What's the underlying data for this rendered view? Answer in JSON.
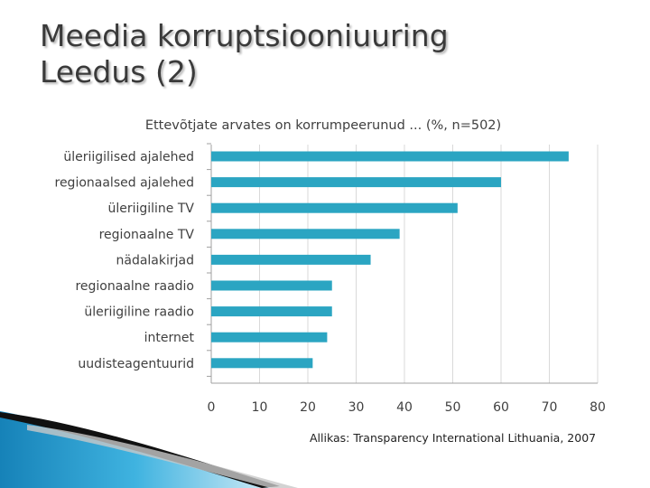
{
  "slide": {
    "title_line1": "Meedia korruptsiooniuuring",
    "title_line2": "Leedus (2)",
    "source": "Allikas: Transparency International Lithuania, 2007"
  },
  "colors": {
    "bar": "#2ba5c2",
    "grid": "#d9d9d9",
    "axis": "#a0a0a0",
    "text": "#404040",
    "deco_blue": "#1e9fd0",
    "deco_dark": "#111111"
  },
  "chart_data": {
    "type": "bar",
    "orientation": "horizontal",
    "title": "Ettevõtjate arvates on korrumpeerunud ... (%, n=502)",
    "categories": [
      "üleriigilised ajalehed",
      "regionaalsed ajalehed",
      "üleriigiline TV",
      "regionaalne TV",
      "nädalakirjad",
      "regionaalne raadio",
      "üleriigiline raadio",
      "internet",
      "uudisteagentuurid"
    ],
    "values": [
      74,
      60,
      51,
      39,
      33,
      25,
      25,
      24,
      21
    ],
    "xlim": [
      0,
      80
    ],
    "xticks": [
      0,
      10,
      20,
      30,
      40,
      50,
      60,
      70,
      80
    ],
    "grid": true,
    "legend": "none"
  }
}
